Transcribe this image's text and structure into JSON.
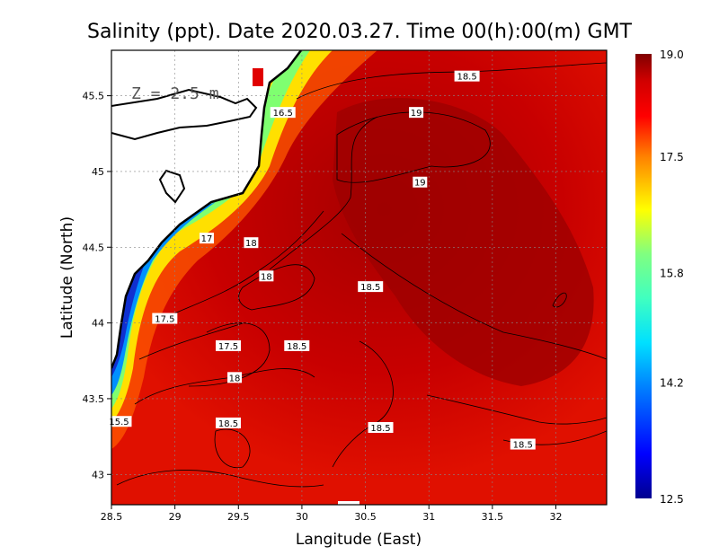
{
  "chart_data": {
    "type": "heatmap",
    "title": "Salinity (ppt). Date 2020.03.27. Time 00(h):00(m) GMT",
    "xlabel": "Langitude (East)",
    "ylabel": "Latitude (North)",
    "xlim": [
      28.5,
      32.4
    ],
    "ylim": [
      42.8,
      45.8
    ],
    "xticks": [
      "28.5",
      "29",
      "29.5",
      "30",
      "30.5",
      "31",
      "31.5",
      "32"
    ],
    "yticks": [
      "43",
      "43.5",
      "44",
      "44.5",
      "45",
      "45.5"
    ],
    "depth_label": "Z = 2.5 m",
    "grid": true,
    "colorbar": {
      "range": [
        12.5,
        19.0
      ],
      "ticks": [
        "12.5",
        "14.2",
        "15.8",
        "17.5",
        "19.0"
      ],
      "colors": [
        "#00008f",
        "#0000ff",
        "#0080ff",
        "#00e0ff",
        "#40ffc0",
        "#80ff80",
        "#ffff00",
        "#ff8000",
        "#ff0000",
        "#d00000",
        "#800000"
      ]
    },
    "contour_labels": [
      {
        "text": "18.5",
        "x": 31.3,
        "y": 45.63
      },
      {
        "text": "19",
        "x": 30.9,
        "y": 45.39
      },
      {
        "text": "16.5",
        "x": 29.85,
        "y": 45.39
      },
      {
        "text": "19",
        "x": 30.93,
        "y": 44.93
      },
      {
        "text": "17",
        "x": 29.25,
        "y": 44.56
      },
      {
        "text": "18",
        "x": 29.6,
        "y": 44.53
      },
      {
        "text": "18",
        "x": 29.72,
        "y": 44.31
      },
      {
        "text": "18.5",
        "x": 30.54,
        "y": 44.24
      },
      {
        "text": "17.5",
        "x": 28.92,
        "y": 44.03
      },
      {
        "text": "17.5",
        "x": 29.42,
        "y": 43.85
      },
      {
        "text": "18.5",
        "x": 29.96,
        "y": 43.85
      },
      {
        "text": "18",
        "x": 29.47,
        "y": 43.64
      },
      {
        "text": "15.5",
        "x": 28.56,
        "y": 43.35
      },
      {
        "text": "18.5",
        "x": 29.42,
        "y": 43.34
      },
      {
        "text": "18.5",
        "x": 30.62,
        "y": 43.31
      },
      {
        "text": "18.5",
        "x": 31.74,
        "y": 43.2
      }
    ]
  }
}
